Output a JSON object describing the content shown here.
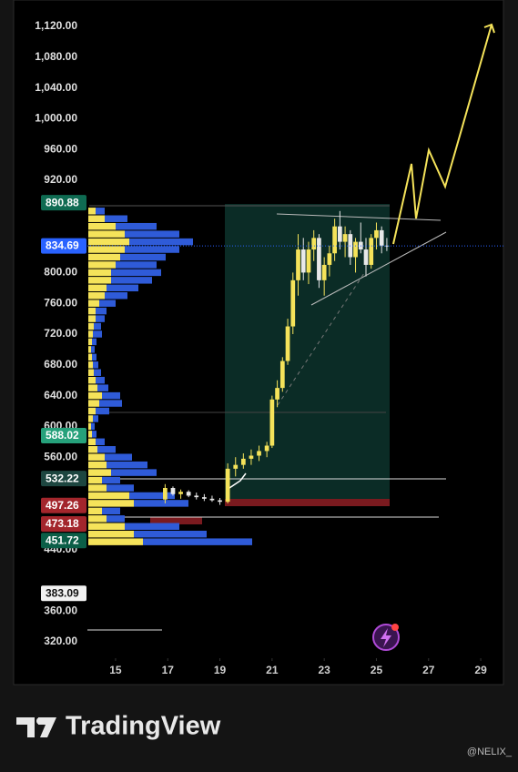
{
  "chart_data": {
    "type": "candlestick",
    "x": [
      16.9,
      17.2,
      17.5,
      17.8,
      18.1,
      18.4,
      18.7,
      19.0,
      19.3,
      19.6,
      19.9,
      20.2,
      20.5,
      20.8,
      21.0,
      21.2,
      21.4,
      21.6,
      21.8,
      22.0,
      22.2,
      22.4,
      22.6,
      22.8,
      23.0,
      23.2,
      23.4,
      23.6,
      23.8,
      24.0,
      24.2,
      24.4,
      24.6,
      24.8,
      25.0,
      25.2,
      25.4
    ],
    "open": [
      505,
      520,
      512,
      515,
      510,
      508,
      506,
      504,
      502,
      545,
      550,
      558,
      562,
      568,
      575,
      635,
      650,
      685,
      730,
      790,
      830,
      800,
      830,
      845,
      790,
      810,
      825,
      860,
      840,
      850,
      820,
      840,
      830,
      810,
      845,
      855,
      835
    ],
    "high": [
      525,
      522,
      518,
      517,
      514,
      512,
      510,
      507,
      552,
      560,
      565,
      570,
      575,
      580,
      640,
      660,
      690,
      740,
      800,
      850,
      845,
      840,
      855,
      850,
      820,
      835,
      870,
      880,
      860,
      855,
      845,
      865,
      845,
      850,
      865,
      860,
      845
    ],
    "low": [
      500,
      510,
      506,
      508,
      505,
      503,
      502,
      498,
      500,
      535,
      545,
      550,
      555,
      560,
      572,
      625,
      645,
      680,
      720,
      770,
      790,
      785,
      815,
      780,
      770,
      795,
      815,
      830,
      820,
      810,
      800,
      825,
      795,
      805,
      830,
      825,
      828
    ],
    "close": [
      520,
      512,
      515,
      510,
      508,
      506,
      504,
      502,
      545,
      550,
      558,
      562,
      568,
      575,
      635,
      650,
      685,
      730,
      790,
      830,
      800,
      830,
      845,
      790,
      810,
      825,
      860,
      840,
      850,
      820,
      840,
      830,
      810,
      845,
      855,
      835,
      834.69
    ],
    "up_color": "#f5e35a",
    "down_color": "#e8e8e8",
    "xlim": [
      13.92,
      29.87
    ],
    "ylim": [
      298.7,
      1154.3
    ],
    "xticks": [
      15,
      17,
      19,
      21,
      23,
      25,
      27,
      29
    ],
    "yticks": [
      {
        "value": 1120,
        "label": "1,120.00"
      },
      {
        "value": 1080,
        "label": "1,080.00"
      },
      {
        "value": 1040,
        "label": "1,040.00"
      },
      {
        "value": 1000,
        "label": "1,000.00"
      },
      {
        "value": 960,
        "label": "960.00"
      },
      {
        "value": 920,
        "label": "920.00"
      },
      {
        "value": 800,
        "label": "800.00"
      },
      {
        "value": 760,
        "label": "760.00"
      },
      {
        "value": 720,
        "label": "720.00"
      },
      {
        "value": 680,
        "label": "680.00"
      },
      {
        "value": 640,
        "label": "640.00"
      },
      {
        "value": 600,
        "label": "600.00"
      },
      {
        "value": 560,
        "label": "560.00"
      },
      {
        "value": 440,
        "label": "440.00"
      },
      {
        "value": 360,
        "label": "360.00"
      },
      {
        "value": 320,
        "label": "320.00"
      }
    ],
    "price_labels": [
      {
        "value": 890.88,
        "color": "#0f6b52"
      },
      {
        "value": 834.69,
        "color": "#2962ff"
      },
      {
        "value": 588.02,
        "color": "#26a17b"
      },
      {
        "value": 532.22,
        "color": "#1d4640"
      },
      {
        "value": 497.26,
        "color": "#a3262c"
      },
      {
        "value": 473.18,
        "color": "#a3262c"
      },
      {
        "value": 451.72,
        "color": "#0b5e47"
      },
      {
        "value": 383.09,
        "color": "#f2f2f2"
      }
    ],
    "volume_profile": {
      "levels": [
        450,
        460,
        470,
        480,
        490,
        500,
        510,
        520,
        530,
        540,
        550,
        560,
        570,
        580,
        590,
        600,
        610,
        620,
        630,
        640,
        650,
        660,
        670,
        680,
        690,
        700,
        710,
        720,
        730,
        740,
        750,
        760,
        770,
        780,
        790,
        800,
        810,
        820,
        830,
        840,
        850,
        860,
        870,
        880
      ],
      "up": [
        60,
        50,
        40,
        20,
        15,
        50,
        45,
        20,
        15,
        25,
        20,
        18,
        10,
        8,
        4,
        3,
        5,
        8,
        12,
        15,
        10,
        8,
        6,
        5,
        4,
        3,
        4,
        5,
        6,
        8,
        8,
        12,
        18,
        20,
        25,
        25,
        30,
        35,
        40,
        45,
        40,
        30,
        18,
        8
      ],
      "down": [
        120,
        80,
        60,
        20,
        20,
        60,
        50,
        30,
        20,
        50,
        45,
        30,
        20,
        10,
        5,
        4,
        6,
        15,
        25,
        20,
        12,
        10,
        8,
        6,
        5,
        4,
        5,
        10,
        8,
        10,
        12,
        18,
        25,
        35,
        45,
        55,
        45,
        50,
        60,
        70,
        60,
        45,
        25,
        10
      ],
      "up_color": "#f5e35a",
      "down_color": "#2f5bd8"
    }
  },
  "branding": {
    "name": "TradingView",
    "author": "@NELIX_"
  }
}
